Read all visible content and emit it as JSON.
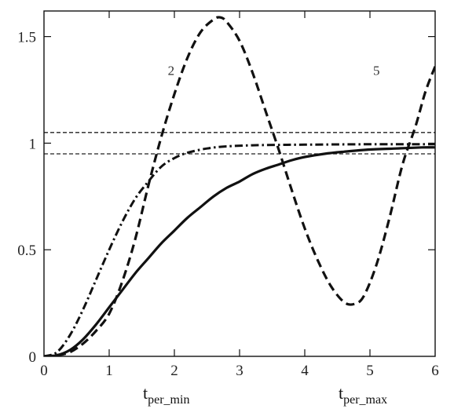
{
  "chart_data": {
    "type": "line",
    "title": "",
    "xlim": [
      0,
      6
    ],
    "ylim": [
      0,
      1.62
    ],
    "grid": false,
    "legend": "none",
    "x_ticks": [
      {
        "value": 0,
        "label": "0"
      },
      {
        "value": 1,
        "label": "1"
      },
      {
        "value": 2,
        "label": "2"
      },
      {
        "value": 3,
        "label": "3"
      },
      {
        "value": 4,
        "label": "4"
      },
      {
        "value": 5,
        "label": "5"
      },
      {
        "value": 6,
        "label": "6"
      }
    ],
    "y_ticks": [
      {
        "value": 0,
        "label": "0"
      },
      {
        "value": 0.5,
        "label": "0.5"
      },
      {
        "value": 1,
        "label": "1"
      },
      {
        "value": 1.5,
        "label": "1.5"
      }
    ],
    "x_axis_labels": [
      {
        "x": 2,
        "base": "t",
        "sub": "per_min"
      },
      {
        "x": 5,
        "base": "t",
        "sub": "per_max"
      }
    ],
    "annotations": [
      {
        "text": "2",
        "x": 1.95,
        "y": 1.32
      },
      {
        "text": "5",
        "x": 5.1,
        "y": 1.32
      }
    ],
    "reference_lines": [
      {
        "y": 1.05,
        "style": "dashed"
      },
      {
        "y": 0.95,
        "style": "dashed"
      }
    ],
    "series": [
      {
        "style": "solid",
        "x": [
          0,
          0.2,
          0.4,
          0.6,
          0.8,
          1.0,
          1.2,
          1.4,
          1.6,
          1.8,
          2.0,
          2.2,
          2.4,
          2.6,
          2.8,
          3.0,
          3.2,
          3.4,
          3.6,
          3.8,
          4.0,
          4.3,
          4.6,
          5.0,
          5.4,
          5.8,
          6.0
        ],
        "y": [
          0,
          0.005,
          0.03,
          0.08,
          0.15,
          0.23,
          0.31,
          0.39,
          0.46,
          0.53,
          0.59,
          0.65,
          0.7,
          0.75,
          0.79,
          0.82,
          0.855,
          0.88,
          0.9,
          0.92,
          0.935,
          0.95,
          0.96,
          0.97,
          0.975,
          0.98,
          0.98
        ]
      },
      {
        "style": "dashed",
        "x": [
          0,
          0.2,
          0.4,
          0.6,
          0.8,
          1.0,
          1.2,
          1.4,
          1.6,
          1.8,
          2.0,
          2.2,
          2.4,
          2.6,
          2.7,
          2.8,
          3.0,
          3.2,
          3.4,
          3.6,
          3.8,
          4.0,
          4.2,
          4.4,
          4.6,
          4.75,
          4.9,
          5.1,
          5.3,
          5.5,
          5.7,
          5.85,
          6.0
        ],
        "y": [
          0,
          0.005,
          0.02,
          0.06,
          0.12,
          0.2,
          0.35,
          0.55,
          0.8,
          1.03,
          1.23,
          1.4,
          1.52,
          1.58,
          1.59,
          1.57,
          1.48,
          1.33,
          1.15,
          0.97,
          0.78,
          0.6,
          0.45,
          0.33,
          0.255,
          0.245,
          0.28,
          0.43,
          0.65,
          0.9,
          1.08,
          1.24,
          1.36
        ]
      },
      {
        "style": "dash-dot",
        "x": [
          0,
          0.2,
          0.4,
          0.6,
          0.8,
          1.0,
          1.2,
          1.4,
          1.6,
          1.8,
          2.0,
          2.2,
          2.5,
          2.8,
          3.2,
          3.6,
          4.0,
          4.5,
          5.0,
          5.5,
          6.0
        ],
        "y": [
          0,
          0.02,
          0.1,
          0.22,
          0.36,
          0.5,
          0.63,
          0.74,
          0.82,
          0.89,
          0.93,
          0.955,
          0.975,
          0.985,
          0.99,
          0.992,
          0.993,
          0.994,
          0.995,
          0.995,
          0.995
        ]
      }
    ]
  }
}
